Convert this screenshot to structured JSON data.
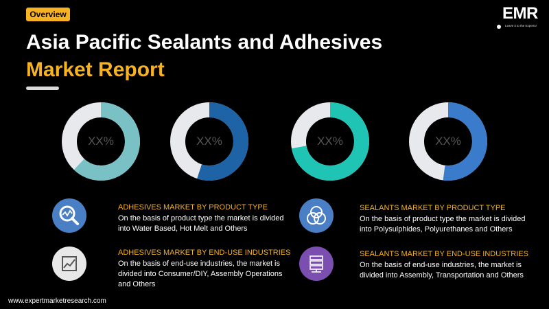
{
  "header": {
    "badge": "Overview",
    "title_line1": "Asia Pacific Sealants and Adhesives",
    "title_line2": "Market Report"
  },
  "logo": {
    "text": "EMR",
    "tagline": "Leave it to the Experts!"
  },
  "colors": {
    "accent": "#f6b221",
    "track": "#e8e9ec",
    "donut1": "#7ac1c6",
    "donut2": "#1e63a6",
    "donut3": "#1fc4b5",
    "donut4": "#3a7ccb",
    "icon1": "#4a7fc5",
    "icon2": "#e8e8e8",
    "icon3": "#4a7fc5",
    "icon4": "#7b4fb0"
  },
  "donuts": [
    {
      "label": "XX%",
      "fill_fraction": 0.62
    },
    {
      "label": "XX%",
      "fill_fraction": 0.55
    },
    {
      "label": "XX%",
      "fill_fraction": 0.72
    },
    {
      "label": "XX%",
      "fill_fraction": 0.52
    }
  ],
  "segments": [
    {
      "icon": "magnifier-chart-icon",
      "title": "ADHESIVES MARKET BY PRODUCT TYPE",
      "description": "On the basis of product type the market is divided into Water Based, Hot Melt and Others"
    },
    {
      "icon": "sealant-circles-icon",
      "title": "SEALANTS MARKET BY PRODUCT TYPE",
      "description": "On the basis of product type the market is divided into Polysulphides, Polyurethanes and Others"
    },
    {
      "icon": "trend-chart-icon",
      "title": "ADHESIVES MARKET BY END-USE INDUSTRIES",
      "description": "On the basis of end-use industries, the market is divided into Consumer/DIY, Assembly Operations and Others"
    },
    {
      "icon": "server-icon",
      "title": "SEALANTS MARKET BY END-USE INDUSTRIES",
      "description": "On the basis of end-use industries, the market is divided into Assembly, Transportation and Others"
    }
  ],
  "footer": {
    "url": "www.expertmarketresearch.com"
  }
}
